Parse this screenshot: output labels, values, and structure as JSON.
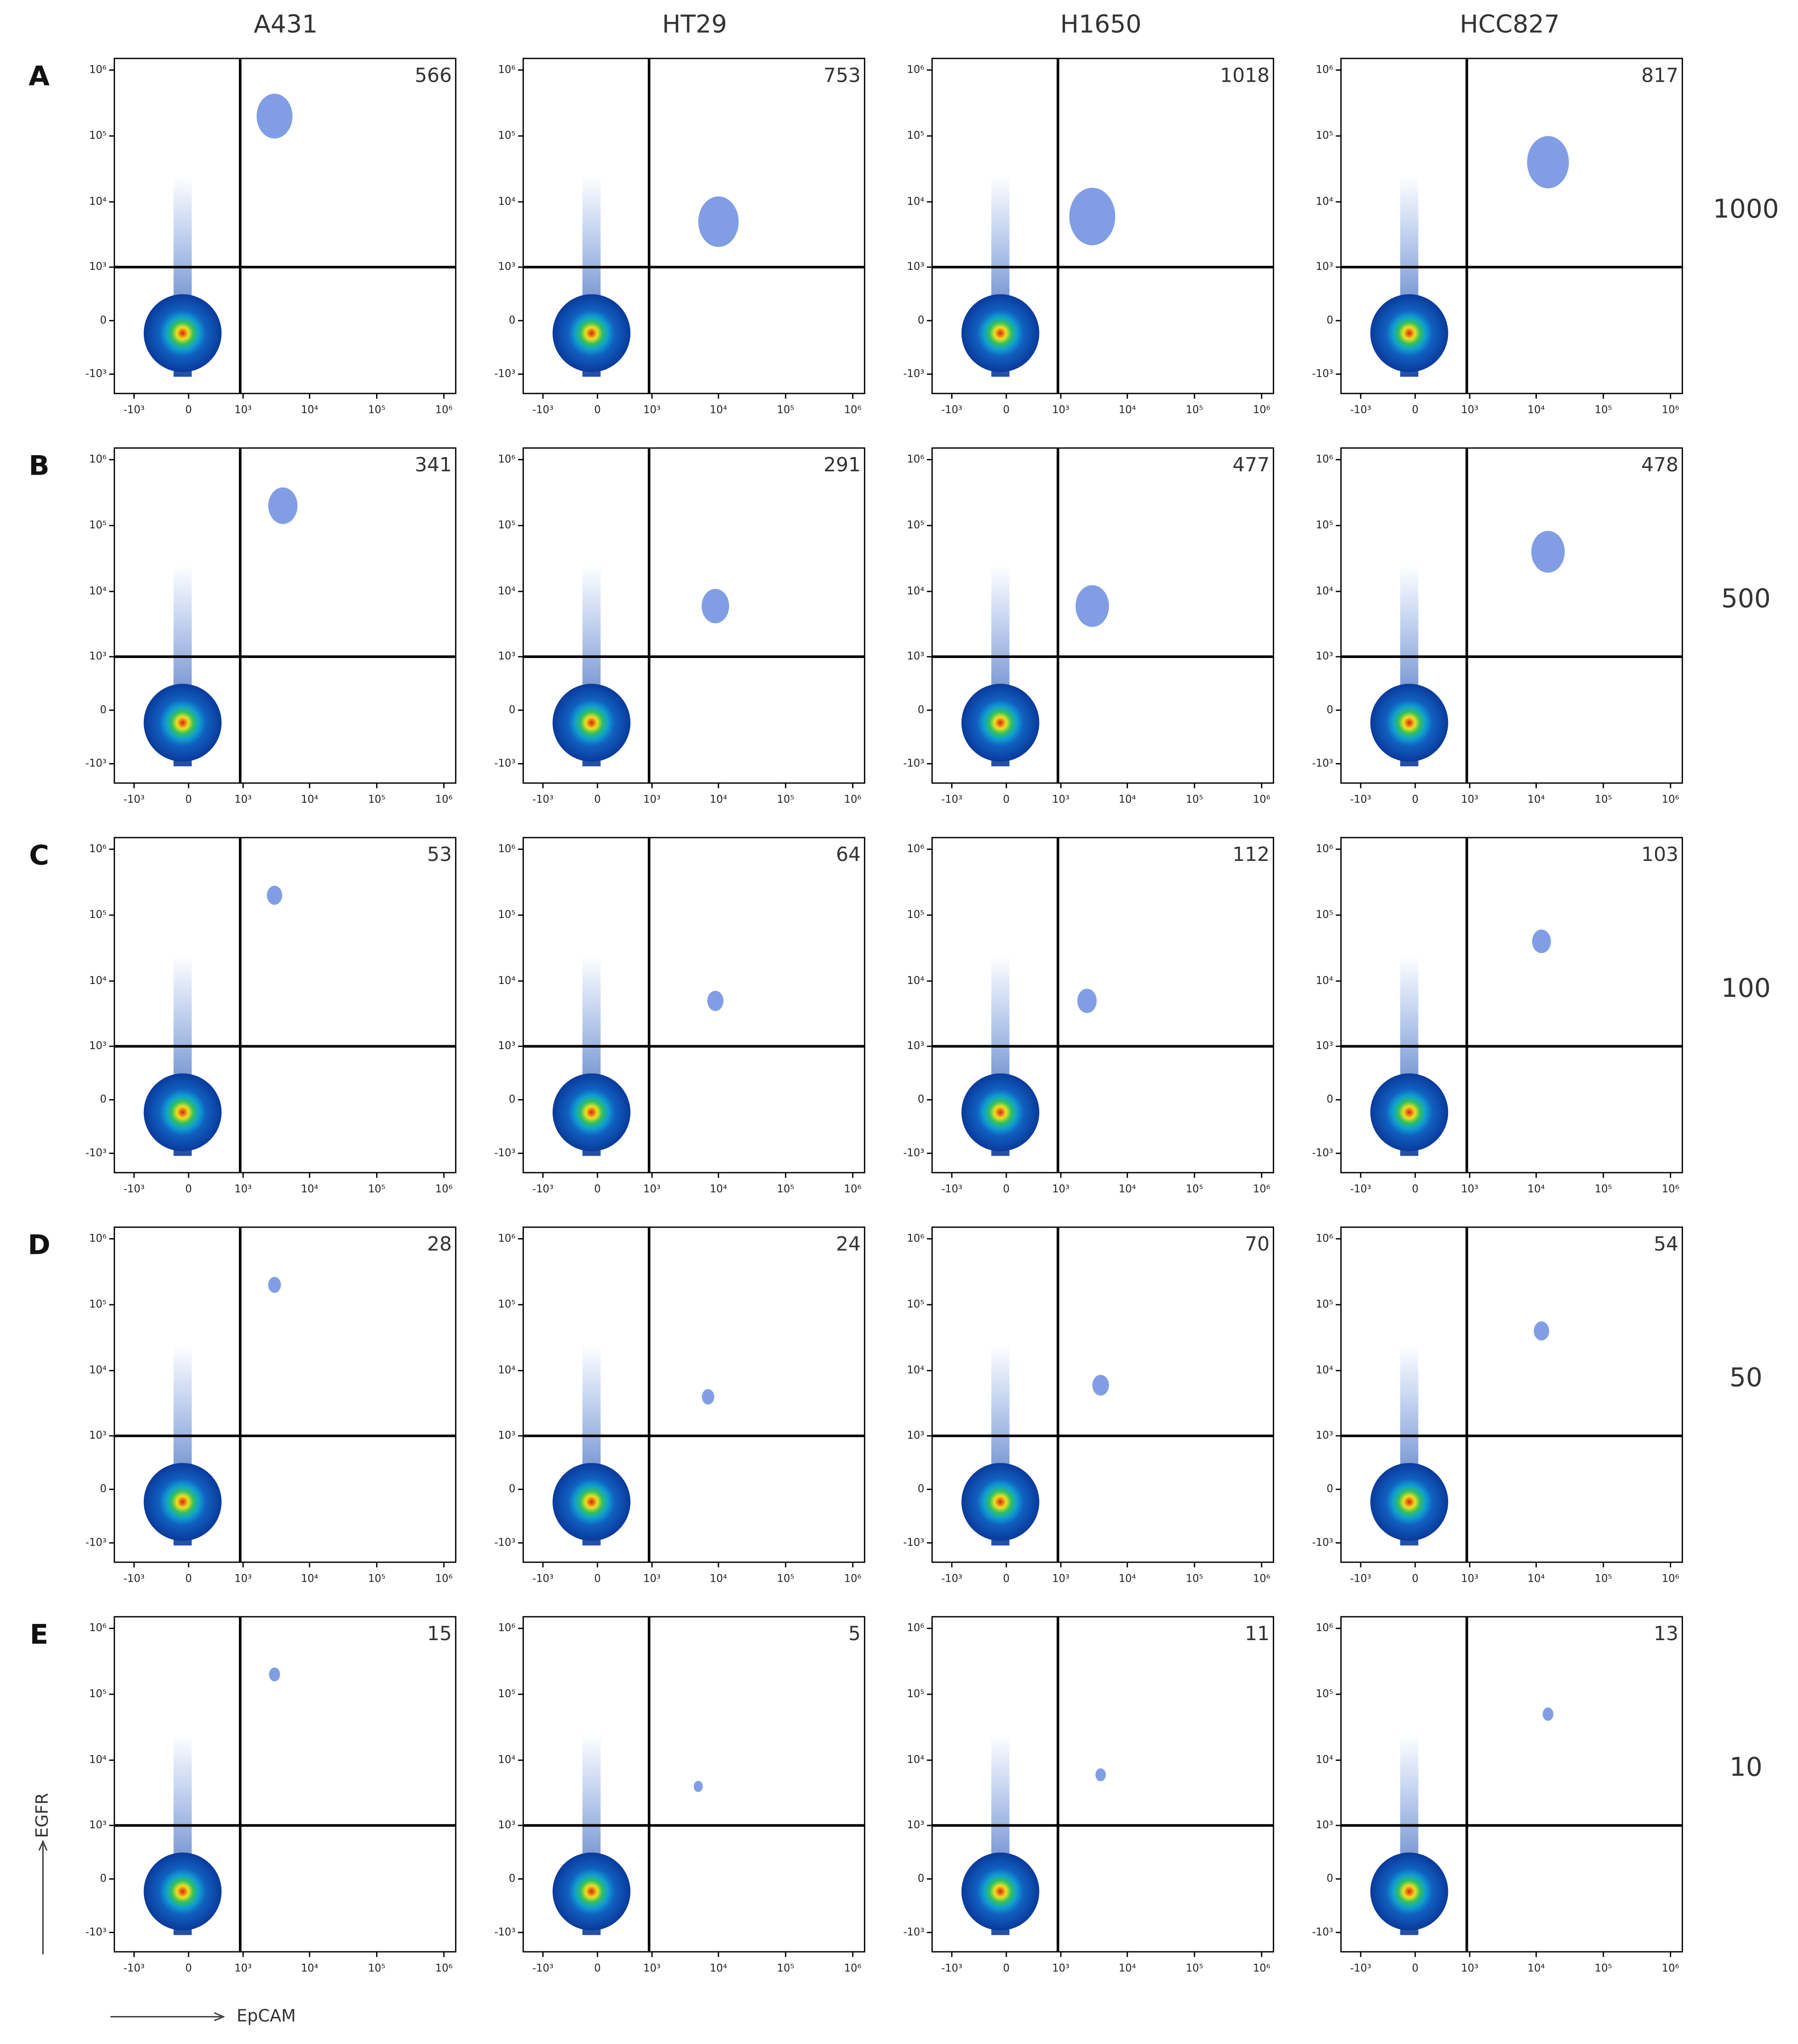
{
  "columns": [
    "A431",
    "HT29",
    "H1650",
    "HCC827"
  ],
  "rows": [
    {
      "letter": "A",
      "value": "1000"
    },
    {
      "letter": "B",
      "value": "500"
    },
    {
      "letter": "C",
      "value": "100"
    },
    {
      "letter": "D",
      "value": "50"
    },
    {
      "letter": "E",
      "value": "10"
    }
  ],
  "axes": {
    "scale": "biexponential",
    "x_label": "EpCAM",
    "y_label": "EGFR",
    "xlim": [
      -2000,
      1500000
    ],
    "ylim": [
      -2000,
      1500000
    ],
    "xticks": [
      {
        "value": -1000,
        "label": "-10³"
      },
      0,
      {
        "value": 1000,
        "label": "10³"
      },
      {
        "value": 10000,
        "label": "10⁴"
      },
      {
        "value": 100000,
        "label": "10⁵"
      },
      {
        "value": 1000000,
        "label": "10⁶"
      }
    ],
    "yticks": [
      {
        "value": -1000,
        "label": "-10³"
      },
      0,
      {
        "value": 1000,
        "label": "10³"
      },
      {
        "value": 10000,
        "label": "10⁴"
      },
      {
        "value": 100000,
        "label": "10⁵"
      },
      {
        "value": 1000000,
        "label": "10⁶"
      }
    ],
    "gate": {
      "x": 900,
      "y": 1000
    }
  },
  "chart_data": [
    {
      "type": "scatter",
      "count": "566",
      "positive_cluster": [
        3000,
        200000
      ]
    },
    {
      "type": "scatter",
      "count": "753",
      "positive_cluster": [
        10000,
        5000
      ]
    },
    {
      "type": "scatter",
      "count": "1018",
      "positive_cluster": [
        3000,
        6000
      ]
    },
    {
      "type": "scatter",
      "count": "817",
      "positive_cluster": [
        15000,
        40000
      ]
    },
    {
      "type": "scatter",
      "count": "341",
      "positive_cluster": [
        4000,
        200000
      ]
    },
    {
      "type": "scatter",
      "count": "291",
      "positive_cluster": [
        9000,
        6000
      ]
    },
    {
      "type": "scatter",
      "count": "477",
      "positive_cluster": [
        3000,
        6000
      ]
    },
    {
      "type": "scatter",
      "count": "478",
      "positive_cluster": [
        15000,
        40000
      ]
    },
    {
      "type": "scatter",
      "count": "53",
      "positive_cluster": [
        3000,
        200000
      ]
    },
    {
      "type": "scatter",
      "count": "64",
      "positive_cluster": [
        9000,
        5000
      ]
    },
    {
      "type": "scatter",
      "count": "112",
      "positive_cluster": [
        2500,
        5000
      ]
    },
    {
      "type": "scatter",
      "count": "103",
      "positive_cluster": [
        12000,
        40000
      ]
    },
    {
      "type": "scatter",
      "count": "28",
      "positive_cluster": [
        3000,
        200000
      ]
    },
    {
      "type": "scatter",
      "count": "24",
      "positive_cluster": [
        7000,
        4000
      ]
    },
    {
      "type": "scatter",
      "count": "70",
      "positive_cluster": [
        4000,
        6000
      ]
    },
    {
      "type": "scatter",
      "count": "54",
      "positive_cluster": [
        12000,
        40000
      ]
    },
    {
      "type": "scatter",
      "count": "15",
      "positive_cluster": [
        3000,
        200000
      ]
    },
    {
      "type": "scatter",
      "count": "5",
      "positive_cluster": [
        5000,
        4000
      ]
    },
    {
      "type": "scatter",
      "count": "11",
      "positive_cluster": [
        4000,
        6000
      ]
    },
    {
      "type": "scatter",
      "count": "13",
      "positive_cluster": [
        15000,
        50000
      ]
    }
  ]
}
